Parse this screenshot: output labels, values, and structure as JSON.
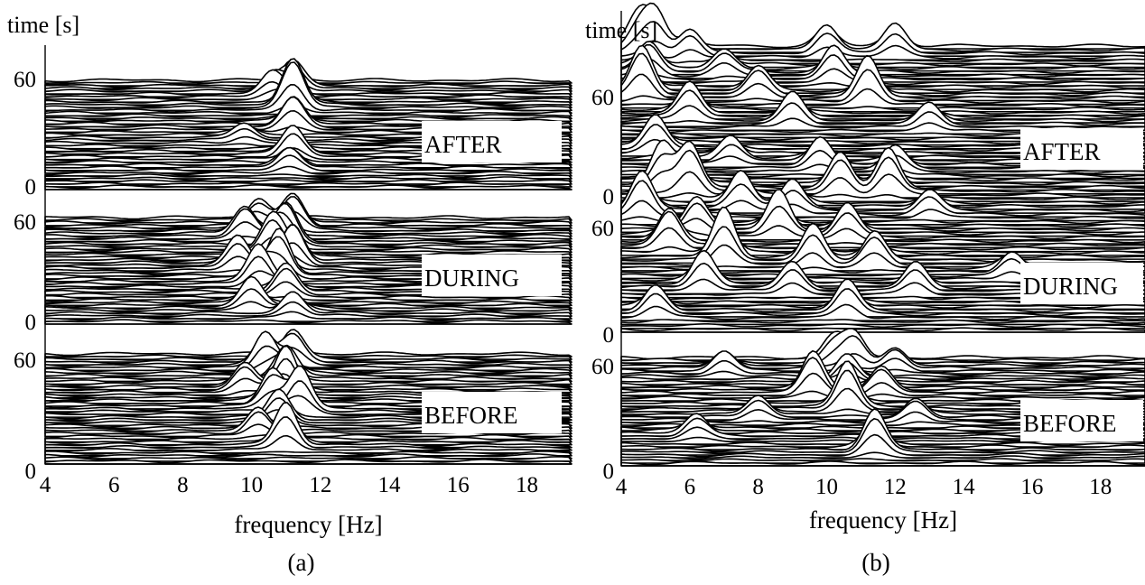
{
  "chart_data": [
    {
      "type": "waterfall",
      "panel_label": "(a)",
      "ylabel": "time [s]",
      "xlabel": "frequency [Hz]",
      "xlim": [
        4,
        19.3
      ],
      "x_ticks": [
        4,
        6,
        8,
        10,
        12,
        14,
        16,
        18
      ],
      "y_ticks": [
        0,
        60
      ],
      "sections": [
        {
          "label": "AFTER",
          "peaks": [
            {
              "freq": 11.2,
              "time": 62,
              "height": 0.5
            },
            {
              "freq": 10.6,
              "time": 58,
              "height": 0.45
            },
            {
              "freq": 11.2,
              "time": 50,
              "height": 1.0
            },
            {
              "freq": 11.2,
              "time": 38,
              "height": 0.6
            },
            {
              "freq": 11.2,
              "time": 20,
              "height": 0.55
            },
            {
              "freq": 11.1,
              "time": 12,
              "height": 0.4
            },
            {
              "freq": 9.8,
              "time": 30,
              "height": 0.3
            }
          ]
        },
        {
          "label": "DURING",
          "peaks": [
            {
              "freq": 10.2,
              "time": 62,
              "height": 0.5
            },
            {
              "freq": 11.2,
              "time": 60,
              "height": 0.7
            },
            {
              "freq": 9.8,
              "time": 55,
              "height": 0.6
            },
            {
              "freq": 11.0,
              "time": 50,
              "height": 0.8
            },
            {
              "freq": 10.6,
              "time": 45,
              "height": 0.7
            },
            {
              "freq": 11.2,
              "time": 38,
              "height": 0.8
            },
            {
              "freq": 9.6,
              "time": 35,
              "height": 0.6
            },
            {
              "freq": 10.8,
              "time": 30,
              "height": 0.9
            },
            {
              "freq": 10.2,
              "time": 25,
              "height": 0.7
            },
            {
              "freq": 11.0,
              "time": 18,
              "height": 0.6
            },
            {
              "freq": 10.0,
              "time": 10,
              "height": 0.5
            },
            {
              "freq": 11.2,
              "time": 5,
              "height": 0.4
            }
          ]
        },
        {
          "label": "BEFORE",
          "peaks": [
            {
              "freq": 11.2,
              "time": 62,
              "height": 0.6
            },
            {
              "freq": 10.4,
              "time": 58,
              "height": 0.7
            },
            {
              "freq": 11.0,
              "time": 52,
              "height": 0.6
            },
            {
              "freq": 9.8,
              "time": 45,
              "height": 0.5
            },
            {
              "freq": 11.0,
              "time": 42,
              "height": 0.9
            },
            {
              "freq": 10.6,
              "time": 35,
              "height": 0.7
            },
            {
              "freq": 11.4,
              "time": 32,
              "height": 0.8
            },
            {
              "freq": 10.8,
              "time": 25,
              "height": 0.6
            },
            {
              "freq": 10.2,
              "time": 18,
              "height": 0.5
            },
            {
              "freq": 11.0,
              "time": 10,
              "height": 0.8
            }
          ]
        }
      ]
    },
    {
      "type": "waterfall",
      "panel_label": "(b)",
      "ylabel": "time [s]",
      "xlabel": "frequency [Hz]",
      "xlim": [
        4,
        19.3
      ],
      "x_ticks": [
        4,
        6,
        8,
        10,
        12,
        14,
        16,
        18
      ],
      "y_ticks": [
        0,
        60
      ],
      "sections": [
        {
          "label": "AFTER",
          "peaks": [
            {
              "freq": 4.5,
              "time": 66,
              "height": 0.6
            },
            {
              "freq": 5.0,
              "time": 64,
              "height": 0.7
            },
            {
              "freq": 6.0,
              "time": 62,
              "height": 0.5
            },
            {
              "freq": 10.0,
              "time": 64,
              "height": 0.5
            },
            {
              "freq": 12.0,
              "time": 64,
              "height": 0.5
            },
            {
              "freq": 4.8,
              "time": 55,
              "height": 0.6
            },
            {
              "freq": 7.0,
              "time": 55,
              "height": 0.4
            },
            {
              "freq": 10.2,
              "time": 52,
              "height": 0.6
            },
            {
              "freq": 4.6,
              "time": 45,
              "height": 0.9
            },
            {
              "freq": 8.0,
              "time": 45,
              "height": 0.5
            },
            {
              "freq": 11.2,
              "time": 42,
              "height": 0.8
            },
            {
              "freq": 6.0,
              "time": 35,
              "height": 0.6
            },
            {
              "freq": 9.0,
              "time": 32,
              "height": 0.5
            },
            {
              "freq": 13.0,
              "time": 30,
              "height": 0.4
            },
            {
              "freq": 5.0,
              "time": 20,
              "height": 0.6
            },
            {
              "freq": 7.2,
              "time": 15,
              "height": 0.4
            },
            {
              "freq": 9.8,
              "time": 12,
              "height": 0.5
            },
            {
              "freq": 12.0,
              "time": 10,
              "height": 0.4
            }
          ]
        },
        {
          "label": "DURING",
          "peaks": [
            {
              "freq": 5.2,
              "time": 64,
              "height": 0.8
            },
            {
              "freq": 6.0,
              "time": 62,
              "height": 0.9
            },
            {
              "freq": 10.4,
              "time": 62,
              "height": 0.7
            },
            {
              "freq": 11.8,
              "time": 62,
              "height": 0.8
            },
            {
              "freq": 7.5,
              "time": 56,
              "height": 0.6
            },
            {
              "freq": 9.0,
              "time": 54,
              "height": 0.5
            },
            {
              "freq": 4.6,
              "time": 52,
              "height": 0.8
            },
            {
              "freq": 13.0,
              "time": 52,
              "height": 0.4
            },
            {
              "freq": 6.2,
              "time": 45,
              "height": 0.6
            },
            {
              "freq": 8.6,
              "time": 44,
              "height": 0.7
            },
            {
              "freq": 10.6,
              "time": 42,
              "height": 0.6
            },
            {
              "freq": 5.4,
              "time": 38,
              "height": 0.7
            },
            {
              "freq": 7.0,
              "time": 32,
              "height": 0.9
            },
            {
              "freq": 9.6,
              "time": 30,
              "height": 0.7
            },
            {
              "freq": 11.4,
              "time": 30,
              "height": 0.6
            },
            {
              "freq": 6.4,
              "time": 20,
              "height": 0.6
            },
            {
              "freq": 9.0,
              "time": 18,
              "height": 0.5
            },
            {
              "freq": 12.6,
              "time": 18,
              "height": 0.5
            },
            {
              "freq": 5.0,
              "time": 8,
              "height": 0.5
            },
            {
              "freq": 10.6,
              "time": 8,
              "height": 0.6
            },
            {
              "freq": 15.4,
              "time": 25,
              "height": 0.4
            }
          ]
        },
        {
          "label": "BEFORE",
          "peaks": [
            {
              "freq": 10.2,
              "time": 64,
              "height": 0.5
            },
            {
              "freq": 10.8,
              "time": 62,
              "height": 0.6
            },
            {
              "freq": 12.0,
              "time": 60,
              "height": 0.4
            },
            {
              "freq": 7.0,
              "time": 58,
              "height": 0.4
            },
            {
              "freq": 10.6,
              "time": 52,
              "height": 0.5
            },
            {
              "freq": 9.6,
              "time": 45,
              "height": 0.8
            },
            {
              "freq": 11.6,
              "time": 45,
              "height": 0.5
            },
            {
              "freq": 10.6,
              "time": 35,
              "height": 0.9
            },
            {
              "freq": 8.0,
              "time": 30,
              "height": 0.4
            },
            {
              "freq": 12.6,
              "time": 28,
              "height": 0.4
            },
            {
              "freq": 6.2,
              "time": 18,
              "height": 0.4
            },
            {
              "freq": 11.4,
              "time": 8,
              "height": 0.8
            }
          ]
        }
      ]
    }
  ]
}
